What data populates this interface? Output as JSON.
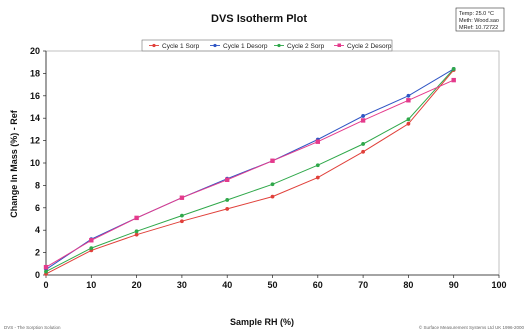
{
  "chart_data": {
    "type": "line",
    "title": "DVS Isotherm Plot",
    "xlabel": "Sample RH (%)",
    "ylabel": "Change In Mass (%) - Ref",
    "xlim": [
      0,
      100
    ],
    "ylim": [
      0,
      20
    ],
    "xticks": [
      0,
      10,
      20,
      30,
      40,
      50,
      60,
      70,
      80,
      90,
      100
    ],
    "yticks": [
      0,
      2,
      4,
      6,
      8,
      10,
      12,
      14,
      16,
      18,
      20
    ],
    "grid": false,
    "legend_position": "top",
    "series": [
      {
        "name": "Cycle 1 Sorp",
        "color": "#e0403a",
        "marker": "circle",
        "x": [
          0,
          10,
          20,
          30,
          40,
          50,
          60,
          70,
          80,
          90
        ],
        "y": [
          0.1,
          2.2,
          3.6,
          4.8,
          5.9,
          7.0,
          8.7,
          11.0,
          13.5,
          18.3
        ]
      },
      {
        "name": "Cycle 1 Desorp",
        "color": "#2f55c4",
        "marker": "circle",
        "x": [
          90,
          80,
          70,
          60,
          50,
          40,
          30,
          20,
          10,
          0
        ],
        "y": [
          18.4,
          16.0,
          14.2,
          12.1,
          10.2,
          8.6,
          6.9,
          5.1,
          3.2,
          0.5
        ]
      },
      {
        "name": "Cycle 2 Sorp",
        "color": "#2fa84a",
        "marker": "circle",
        "x": [
          0,
          10,
          20,
          30,
          40,
          50,
          60,
          70,
          80,
          90
        ],
        "y": [
          0.3,
          2.4,
          3.9,
          5.3,
          6.7,
          8.1,
          9.8,
          11.7,
          13.9,
          18.4
        ]
      },
      {
        "name": "Cycle 2 Desorp",
        "color": "#e43a8c",
        "marker": "square",
        "x": [
          90,
          80,
          70,
          60,
          50,
          40,
          30,
          20,
          10,
          0
        ],
        "y": [
          17.4,
          15.6,
          13.8,
          11.9,
          10.2,
          8.5,
          6.9,
          5.1,
          3.1,
          0.7
        ]
      }
    ]
  },
  "info_box": {
    "line1": "Temp: 25.0 °C",
    "line2": "Meth: Wood.sao",
    "line3": "MRef: 10.72722"
  },
  "footer": {
    "left": "DVS - The Sorption Solution",
    "right": "© Surface Measurement Systems Ltd UK 1996-2000"
  }
}
